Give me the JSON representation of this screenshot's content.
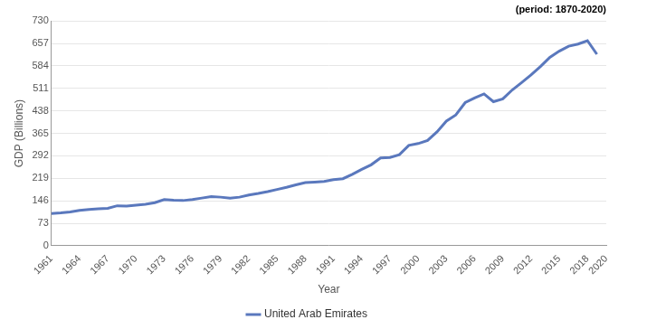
{
  "chart_data": {
    "type": "line",
    "subtitle": "(period: 1870-2020)",
    "x_label": "Year",
    "y_label": "GDP (Billions)",
    "x": [
      1961,
      1962,
      1963,
      1964,
      1965,
      1966,
      1967,
      1968,
      1969,
      1970,
      1971,
      1972,
      1973,
      1974,
      1975,
      1976,
      1977,
      1978,
      1979,
      1980,
      1981,
      1982,
      1983,
      1984,
      1985,
      1986,
      1987,
      1988,
      1989,
      1990,
      1991,
      1992,
      1993,
      1994,
      1995,
      1996,
      1997,
      1998,
      1999,
      2000,
      2001,
      2002,
      2003,
      2004,
      2005,
      2006,
      2007,
      2008,
      2009,
      2010,
      2011,
      2012,
      2013,
      2014,
      2015,
      2016,
      2017,
      2018,
      2019
    ],
    "series": [
      {
        "name": "United Arab Emirates",
        "color": "#5a78bd",
        "values": [
          105,
          107,
          110,
          115,
          118,
          120,
          122,
          130,
          129,
          132,
          135,
          140,
          150,
          148,
          147,
          150,
          155,
          160,
          158,
          155,
          158,
          165,
          170,
          176,
          183,
          190,
          198,
          205,
          207,
          209,
          215,
          218,
          232,
          248,
          263,
          285,
          287,
          296,
          326,
          332,
          342,
          370,
          405,
          425,
          465,
          480,
          493,
          468,
          477,
          506,
          530,
          555,
          582,
          612,
          632,
          648,
          655,
          666,
          622
        ]
      }
    ],
    "xlim": [
      1961,
      2020
    ],
    "xticks": [
      1961,
      1964,
      1967,
      1970,
      1973,
      1976,
      1979,
      1982,
      1985,
      1988,
      1991,
      1994,
      1997,
      2000,
      2003,
      2006,
      2009,
      2012,
      2015,
      2018,
      2020
    ],
    "ylim": [
      0,
      730
    ],
    "yticks": [
      0,
      73,
      146,
      219,
      292,
      365,
      438,
      511,
      584,
      657,
      730
    ],
    "grid": true,
    "legend": "bottom"
  }
}
